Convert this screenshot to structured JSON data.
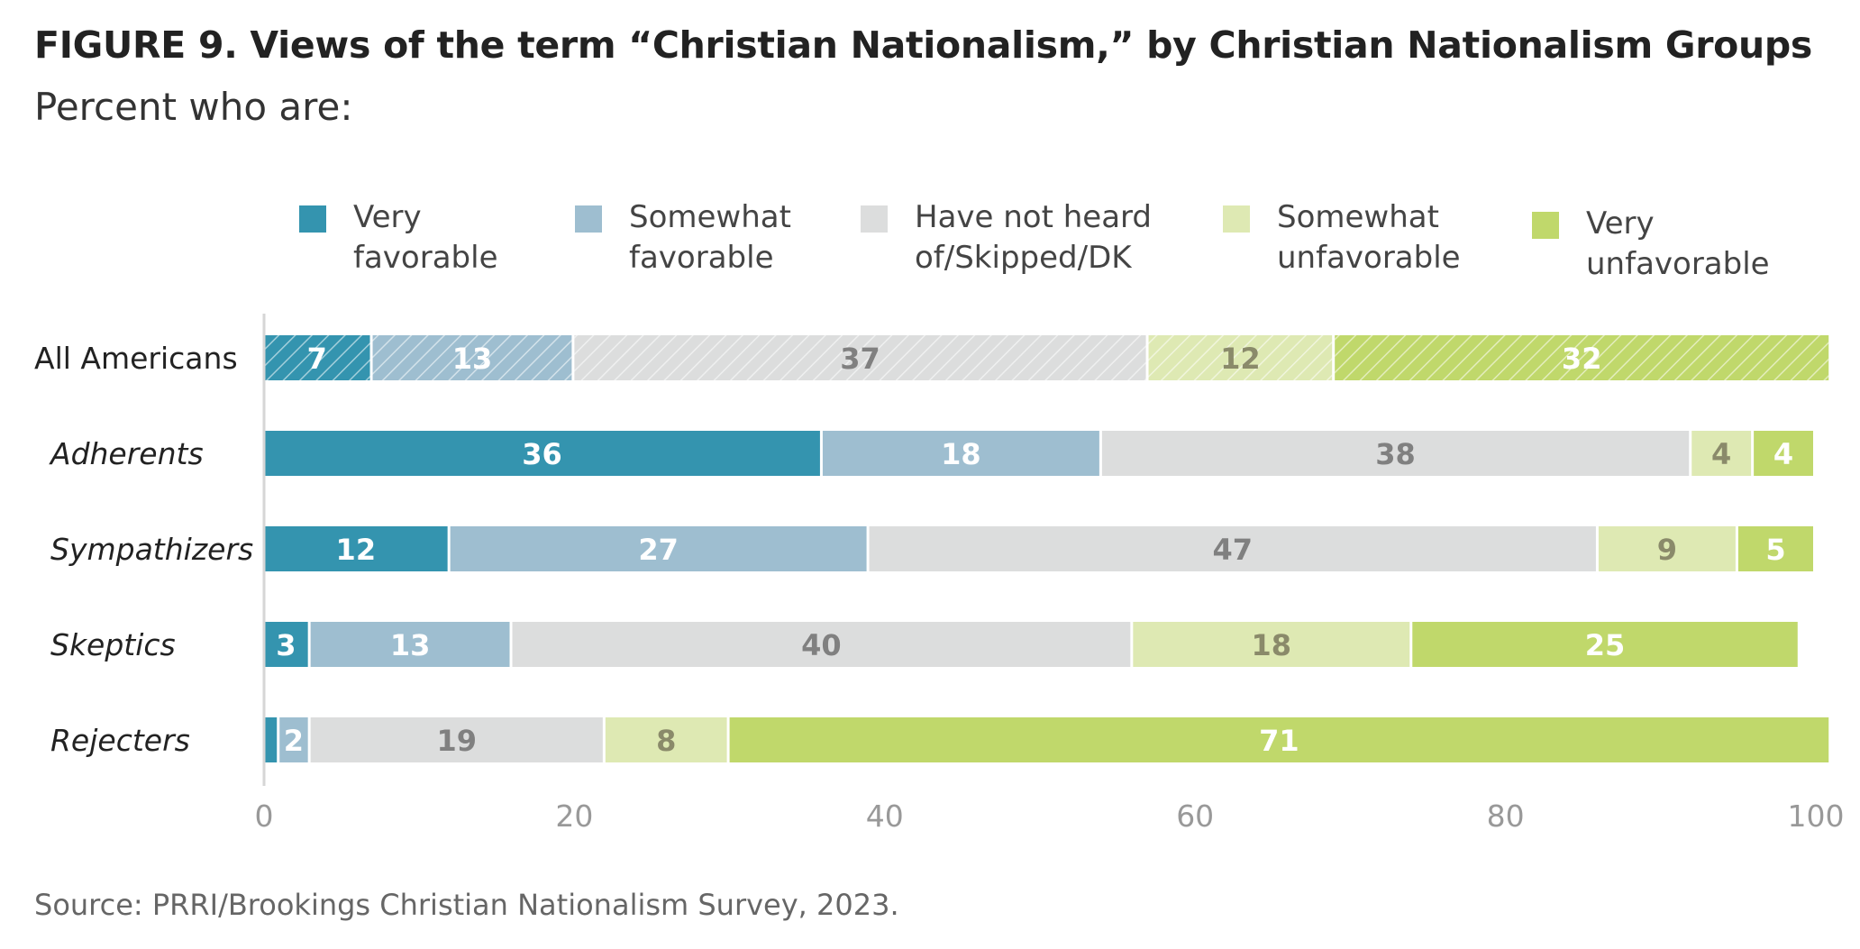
{
  "title": "FIGURE 9.  Views of the term “Christian Nationalism,” by Christian Nationalism Groups",
  "subtitle": "Percent who are:",
  "source": "Source: PRRI/Brookings Christian Nationalism Survey, 2023.",
  "chart_data": {
    "type": "bar",
    "orientation": "horizontal",
    "stacked": true,
    "categories": [
      "All Americans",
      "Adherents",
      "Sympathizers",
      "Skeptics",
      "Rejecters"
    ],
    "category_italic": [
      false,
      true,
      true,
      true,
      true
    ],
    "hatched_categories": [
      "All Americans"
    ],
    "series": [
      {
        "name": "Very\nfavorable",
        "color": "#3494af",
        "label_color": "#ffffff",
        "values": [
          7,
          36,
          12,
          3,
          1
        ]
      },
      {
        "name": "Somewhat\nfavorable",
        "color": "#9ebed0",
        "label_color": "#ffffff",
        "values": [
          13,
          18,
          27,
          13,
          2
        ]
      },
      {
        "name": "Have not heard\nof/Skipped/DK",
        "color": "#dcdddd",
        "label_color": "#808080",
        "values": [
          37,
          38,
          47,
          40,
          19
        ]
      },
      {
        "name": "Somewhat\nunfavorable",
        "color": "#dee9b3",
        "label_color": "#8a8a6a",
        "values": [
          12,
          4,
          9,
          18,
          8
        ]
      },
      {
        "name": "Very\nunfavorable",
        "color": "#c0d86b",
        "label_color": "#ffffff",
        "values": [
          32,
          4,
          5,
          25,
          71
        ]
      }
    ],
    "value_labels": [
      [
        "7",
        "13",
        "37",
        "12",
        "32"
      ],
      [
        "36",
        "18",
        "38",
        "4",
        "4"
      ],
      [
        "12",
        "27",
        "47",
        "9",
        "5"
      ],
      [
        "3",
        "13",
        "40",
        "18",
        "25"
      ],
      [
        "",
        "2",
        "19",
        "8",
        "71"
      ]
    ],
    "xlim": [
      0,
      100
    ],
    "xticks": [
      0,
      20,
      40,
      60,
      80,
      100
    ],
    "legend_position": "top",
    "grid": false
  }
}
